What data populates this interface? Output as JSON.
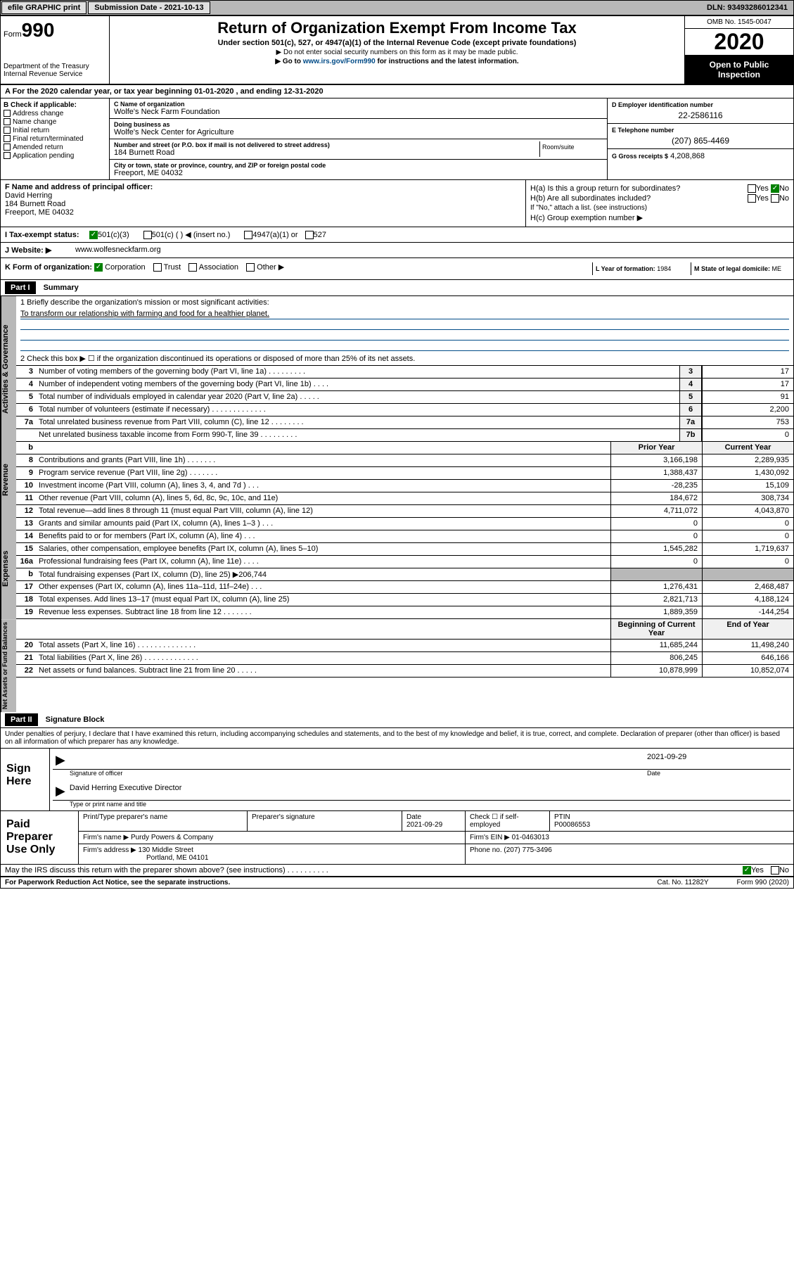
{
  "header": {
    "efile": "efile GRAPHIC print",
    "submission_label": "Submission Date - 2021-10-13",
    "dln": "DLN: 93493286012341"
  },
  "topbox": {
    "form_word": "Form",
    "form_num": "990",
    "dept": "Department of the Treasury Internal Revenue Service",
    "title": "Return of Organization Exempt From Income Tax",
    "subtitle": "Under section 501(c), 527, or 4947(a)(1) of the Internal Revenue Code (except private foundations)",
    "note1": "▶ Do not enter social security numbers on this form as it may be made public.",
    "note2_pre": "▶ Go to ",
    "note2_link": "www.irs.gov/Form990",
    "note2_post": " for instructions and the latest information.",
    "omb": "OMB No. 1545-0047",
    "year": "2020",
    "inspection": "Open to Public Inspection"
  },
  "lineA": "A For the 2020 calendar year, or tax year beginning 01-01-2020   , and ending 12-31-2020",
  "b_checks": {
    "header": "B Check if applicable:",
    "items": [
      "Address change",
      "Name change",
      "Initial return",
      "Final return/terminated",
      "Amended return",
      "Application pending"
    ]
  },
  "c_block": {
    "name_label": "C Name of organization",
    "name": "Wolfe's Neck Farm Foundation",
    "dba_label": "Doing business as",
    "dba": "Wolfe's Neck Center for Agriculture",
    "addr_label": "Number and street (or P.O. box if mail is not delivered to street address)",
    "addr": "184 Burnett Road",
    "room_label": "Room/suite",
    "city_label": "City or town, state or province, country, and ZIP or foreign postal code",
    "city": "Freeport, ME  04032"
  },
  "d_block": {
    "d_label": "D Employer identification number",
    "d_val": "22-2586116",
    "e_label": "E Telephone number",
    "e_val": "(207) 865-4469",
    "g_label": "G Gross receipts $",
    "g_val": "4,208,868"
  },
  "f_block": {
    "label": "F  Name and address of principal officer:",
    "name": "David Herring",
    "addr1": "184 Burnett Road",
    "addr2": "Freeport, ME  04032"
  },
  "h_block": {
    "ha": "H(a)  Is this a group return for subordinates?",
    "hb": "H(b)  Are all subordinates included?",
    "hb_note": "If \"No,\" attach a list. (see instructions)",
    "hc": "H(c)  Group exemption number ▶",
    "yes": "Yes",
    "no": "No"
  },
  "i_row": {
    "label": "I  Tax-exempt status:",
    "opts": [
      "501(c)(3)",
      "501(c) (  ) ◀ (insert no.)",
      "4947(a)(1) or",
      "527"
    ]
  },
  "j_row": {
    "label": "J  Website: ▶",
    "val": "www.wolfesneckfarm.org"
  },
  "k_row": {
    "label": "K Form of organization:",
    "opts": [
      "Corporation",
      "Trust",
      "Association",
      "Other ▶"
    ],
    "l_label": "L Year of formation:",
    "l_val": "1984",
    "m_label": "M State of legal domicile:",
    "m_val": "ME"
  },
  "part1": {
    "header": "Part I",
    "title": "Summary"
  },
  "summary": {
    "line1": "1  Briefly describe the organization's mission or most significant activities:",
    "mission": "To transform our relationship with farming and food for a healthier planet.",
    "line2": "2    Check this box ▶ ☐  if the organization discontinued its operations or disposed of more than 25% of its net assets.",
    "rows_gov": [
      {
        "n": "3",
        "desc": "Number of voting members of the governing body (Part VI, line 1a)   .    .    .    .    .    .    .    .    .",
        "box": "3",
        "val": "17"
      },
      {
        "n": "4",
        "desc": "Number of independent voting members of the governing body (Part VI, line 1b)    .    .    .    .",
        "box": "4",
        "val": "17"
      },
      {
        "n": "5",
        "desc": "Total number of individuals employed in calendar year 2020 (Part V, line 2a)    .    .    .    .    .",
        "box": "5",
        "val": "91"
      },
      {
        "n": "6",
        "desc": "Total number of volunteers (estimate if necessary)    .    .    .    .    .    .    .    .    .    .    .    .    .",
        "box": "6",
        "val": "2,200"
      },
      {
        "n": "7a",
        "desc": "Total unrelated business revenue from Part VIII, column (C), line 12    .    .    .    .    .    .    .    .",
        "box": "7a",
        "val": "753"
      },
      {
        "n": "",
        "desc": "Net unrelated business taxable income from Form 990-T, line 39    .    .    .    .    .    .    .    .    .",
        "box": "7b",
        "val": "0"
      }
    ],
    "col_prior": "Prior Year",
    "col_current": "Current Year",
    "rows_rev": [
      {
        "n": "8",
        "desc": "Contributions and grants (Part VIII, line 1h)    .    .    .    .    .    .    .",
        "prior": "3,166,198",
        "cur": "2,289,935"
      },
      {
        "n": "9",
        "desc": "Program service revenue (Part VIII, line 2g)    .    .    .    .    .    .    .",
        "prior": "1,388,437",
        "cur": "1,430,092"
      },
      {
        "n": "10",
        "desc": "Investment income (Part VIII, column (A), lines 3, 4, and 7d )    .    .    .",
        "prior": "-28,235",
        "cur": "15,109"
      },
      {
        "n": "11",
        "desc": "Other revenue (Part VIII, column (A), lines 5, 6d, 8c, 9c, 10c, and 11e)",
        "prior": "184,672",
        "cur": "308,734"
      },
      {
        "n": "12",
        "desc": "Total revenue—add lines 8 through 11 (must equal Part VIII, column (A), line 12)",
        "prior": "4,711,072",
        "cur": "4,043,870"
      }
    ],
    "rows_exp": [
      {
        "n": "13",
        "desc": "Grants and similar amounts paid (Part IX, column (A), lines 1–3 )    .    .    .",
        "prior": "0",
        "cur": "0"
      },
      {
        "n": "14",
        "desc": "Benefits paid to or for members (Part IX, column (A), line 4)    .    .    .",
        "prior": "0",
        "cur": "0"
      },
      {
        "n": "15",
        "desc": "Salaries, other compensation, employee benefits (Part IX, column (A), lines 5–10)",
        "prior": "1,545,282",
        "cur": "1,719,637"
      },
      {
        "n": "16a",
        "desc": "Professional fundraising fees (Part IX, column (A), line 11e)    .    .    .    .",
        "prior": "0",
        "cur": "0"
      },
      {
        "n": "b",
        "desc": "Total fundraising expenses (Part IX, column (D), line 25) ▶206,744",
        "prior": "",
        "cur": "",
        "shaded": true
      },
      {
        "n": "17",
        "desc": "Other expenses (Part IX, column (A), lines 11a–11d, 11f–24e)    .    .    .",
        "prior": "1,276,431",
        "cur": "2,468,487"
      },
      {
        "n": "18",
        "desc": "Total expenses. Add lines 13–17 (must equal Part IX, column (A), line 25)",
        "prior": "2,821,713",
        "cur": "4,188,124"
      },
      {
        "n": "19",
        "desc": "Revenue less expenses. Subtract line 18 from line 12    .    .    .    .    .    .    .",
        "prior": "1,889,359",
        "cur": "-144,254"
      }
    ],
    "col_beg": "Beginning of Current Year",
    "col_end": "End of Year",
    "rows_net": [
      {
        "n": "20",
        "desc": "Total assets (Part X, line 16)    .    .    .    .    .    .    .    .    .    .    .    .    .    .",
        "prior": "11,685,244",
        "cur": "11,498,240"
      },
      {
        "n": "21",
        "desc": "Total liabilities (Part X, line 26)    .    .    .    .    .    .    .    .    .    .    .    .    .",
        "prior": "806,245",
        "cur": "646,166"
      },
      {
        "n": "22",
        "desc": "Net assets or fund balances. Subtract line 21 from line 20    .    .    .    .    .",
        "prior": "10,878,999",
        "cur": "10,852,074"
      }
    ],
    "side_gov": "Activities & Governance",
    "side_rev": "Revenue",
    "side_exp": "Expenses",
    "side_net": "Net Assets or Fund Balances"
  },
  "part2": {
    "header": "Part II",
    "title": "Signature Block"
  },
  "jurat": "Under penalties of perjury, I declare that I have examined this return, including accompanying schedules and statements, and to the best of my knowledge and belief, it is true, correct, and complete. Declaration of preparer (other than officer) is based on all information of which preparer has any knowledge.",
  "sign": {
    "label": "Sign Here",
    "sig_label": "Signature of officer",
    "date_label": "Date",
    "date": "2021-09-29",
    "name": "David Herring  Executive Director",
    "name_label": "Type or print name and title"
  },
  "preparer": {
    "label": "Paid Preparer Use Only",
    "h1": "Print/Type preparer's name",
    "h2": "Preparer's signature",
    "h3": "Date",
    "date": "2021-09-29",
    "h4": "Check ☐ if self-employed",
    "h5": "PTIN",
    "ptin": "P00086553",
    "firm_label": "Firm's name     ▶",
    "firm": "Purdy Powers & Company",
    "ein_label": "Firm's EIN ▶",
    "ein": "01-0463013",
    "addr_label": "Firm's address ▶",
    "addr1": "130 Middle Street",
    "addr2": "Portland, ME  04101",
    "phone_label": "Phone no.",
    "phone": "(207) 775-3496"
  },
  "discuss": "May the IRS discuss this return with the preparer shown above? (see instructions)    .    .    .    .    .    .    .    .    .    .",
  "footer": {
    "left": "For Paperwork Reduction Act Notice, see the separate instructions.",
    "mid": "Cat. No. 11282Y",
    "right": "Form 990 (2020)"
  }
}
